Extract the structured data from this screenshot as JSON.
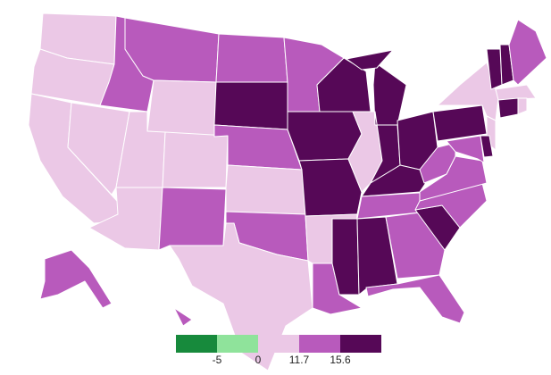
{
  "legend": {
    "colors": [
      "#178a3c",
      "#8fe39b",
      "#ebc8e6",
      "#b85abc",
      "#560857"
    ],
    "breaks": [
      -5,
      0,
      11.7,
      15.6
    ]
  }
}
